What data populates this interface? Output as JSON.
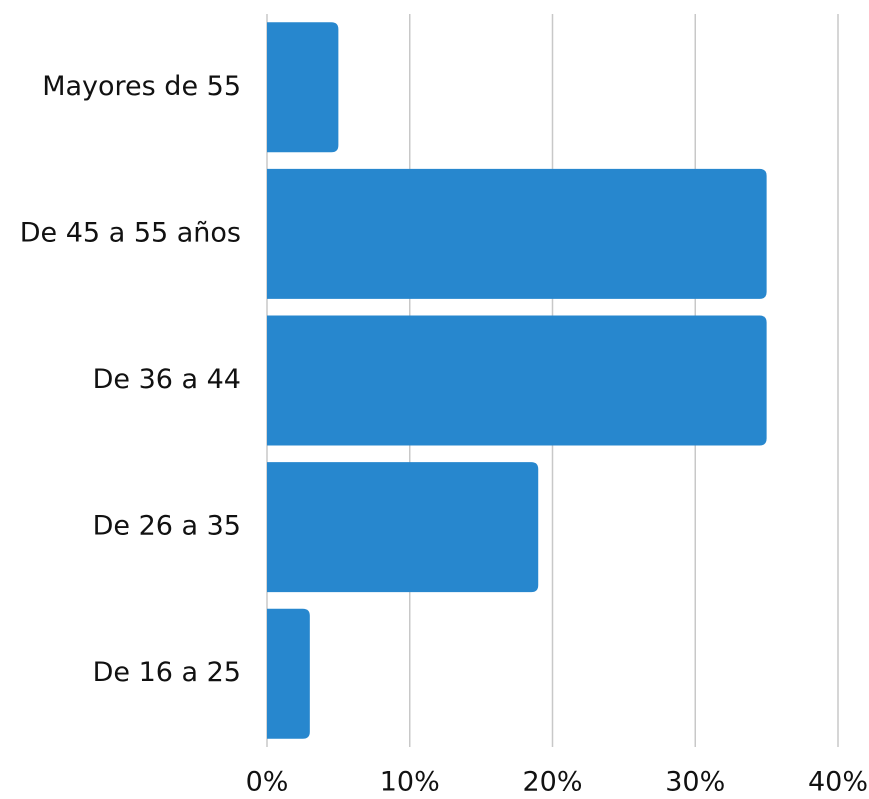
{
  "chart_data": {
    "type": "bar",
    "orientation": "horizontal",
    "title": "",
    "xlabel": "",
    "ylabel": "",
    "categories": [
      "Mayores de 55",
      "De 45 a 55 años",
      "De 36 a 44",
      "De 26 a 35",
      "De 16 a 25"
    ],
    "values": [
      5,
      35,
      35,
      19,
      3
    ],
    "xlim": [
      0,
      40
    ],
    "x_ticks": [
      0,
      10,
      20,
      30,
      40
    ],
    "x_tick_labels": [
      "0%",
      "10%",
      "20%",
      "30%",
      "40%"
    ],
    "grid": true,
    "legend": "none",
    "colors": {
      "bar": "#2787CE",
      "grid": "#C8C8C8",
      "text": "#111111"
    }
  }
}
